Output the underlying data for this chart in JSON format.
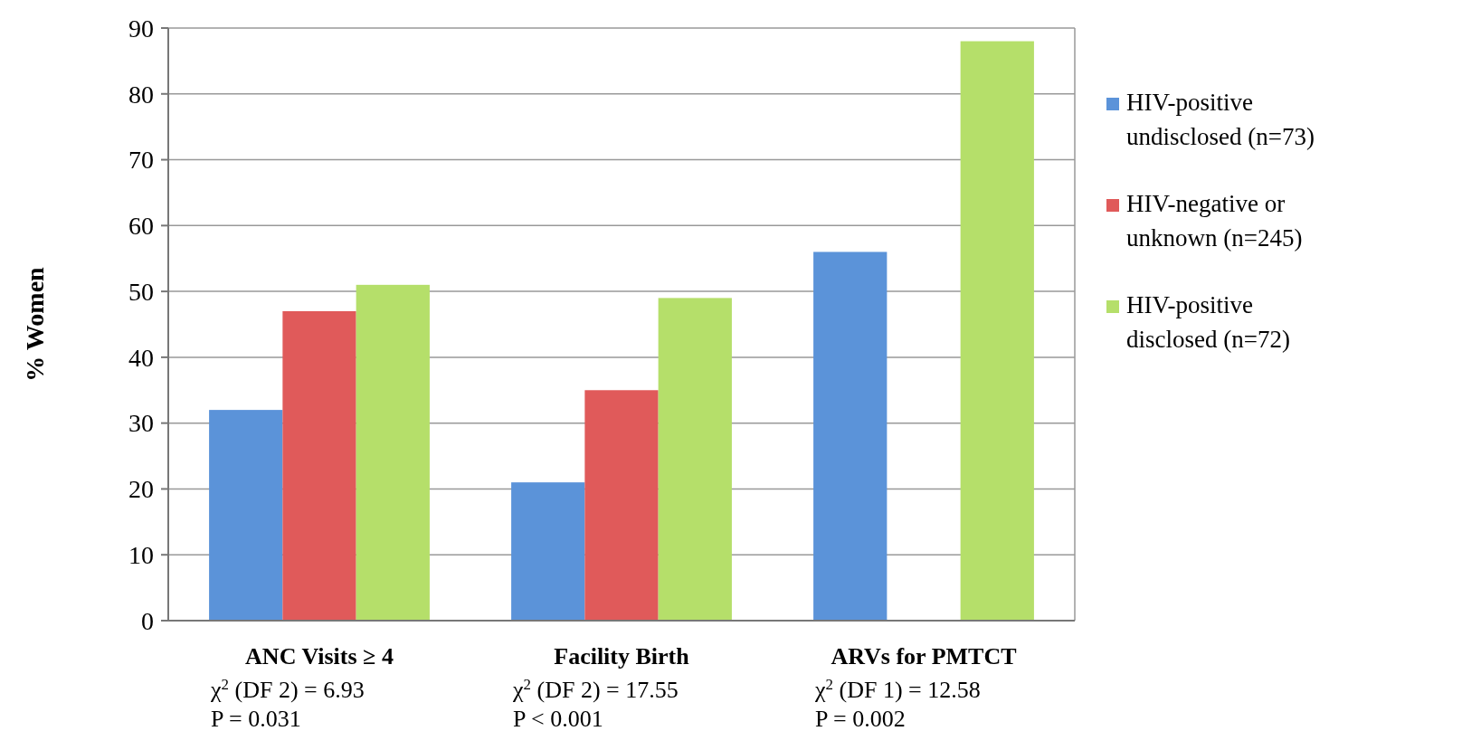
{
  "chart_data": {
    "type": "bar",
    "ylabel": "% Women",
    "categories": [
      "ANC Visits ≥ 4",
      "Facility Birth",
      "ARVs for PMTCT"
    ],
    "series": [
      {
        "name": "HIV-positive undisclosed (n=73)",
        "color": "#5b93d9",
        "values": [
          32,
          21,
          56
        ]
      },
      {
        "name": "HIV-negative or unknown (n=245)",
        "color": "#e05a5a",
        "values": [
          47,
          35,
          null
        ]
      },
      {
        "name": "HIV-positive disclosed (n=72)",
        "color": "#b5df6a",
        "values": [
          51,
          49,
          88
        ]
      }
    ],
    "ylim": [
      0,
      90
    ],
    "yticks": [
      0,
      10,
      20,
      30,
      40,
      50,
      60,
      70,
      80,
      90
    ],
    "grid": "y",
    "legend": "right",
    "annotations": [
      "χ$^{2}$ (DF 2) = 6.93",
      "P = 0.031",
      "χ$^{2}$ (DF 2) = 17.55",
      "P < 0.001",
      "χ$^{2}$ (DF 1) = 12.58",
      "P = 0.002"
    ]
  }
}
